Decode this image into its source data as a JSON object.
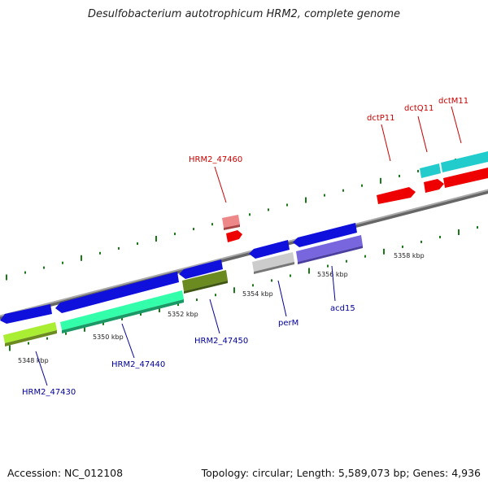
{
  "title": "Desulfobacterium autotrophicum HRM2, complete genome",
  "footer": {
    "accession": "Accession: NC_012108",
    "summary": "Topology: circular; Length: 5,589,073 bp; Genes: 4,936"
  },
  "ruler": {
    "ticks": [
      "5348 kbp",
      "5350 kbp",
      "5352 kbp",
      "5354 kbp",
      "5356 kbp",
      "5358 kbp"
    ]
  },
  "genes": {
    "hrm2_47430": {
      "label": "HRM2_47430",
      "color": "#000099"
    },
    "hrm2_47440": {
      "label": "HRM2_47440",
      "color": "#000099"
    },
    "hrm2_47450": {
      "label": "HRM2_47450",
      "color": "#000099"
    },
    "perm": {
      "label": "perM",
      "color": "#000099"
    },
    "acd15": {
      "label": "acd15",
      "color": "#000099"
    },
    "hrm2_47460": {
      "label": "HRM2_47460",
      "color": "#cc0000"
    },
    "dctp11": {
      "label": "dctP11",
      "color": "#cc0000"
    },
    "dctq11": {
      "label": "dctQ11",
      "color": "#cc0000"
    },
    "dctm11": {
      "label": "dctM11",
      "color": "#cc0000"
    }
  },
  "colors": {
    "backbone": "#888888",
    "tick": "#1a7a1a",
    "cds_blue": "#1010dd",
    "cds_red": "#ee0000",
    "cds_pink": "#ee7777",
    "cds_cyan": "#22cccc",
    "cds_lime": "#aaee33",
    "cds_mint": "#33ffaa",
    "cds_olive": "#6b8a1f",
    "cds_silver": "#bbbbbb",
    "cds_lavender": "#7766dd"
  }
}
